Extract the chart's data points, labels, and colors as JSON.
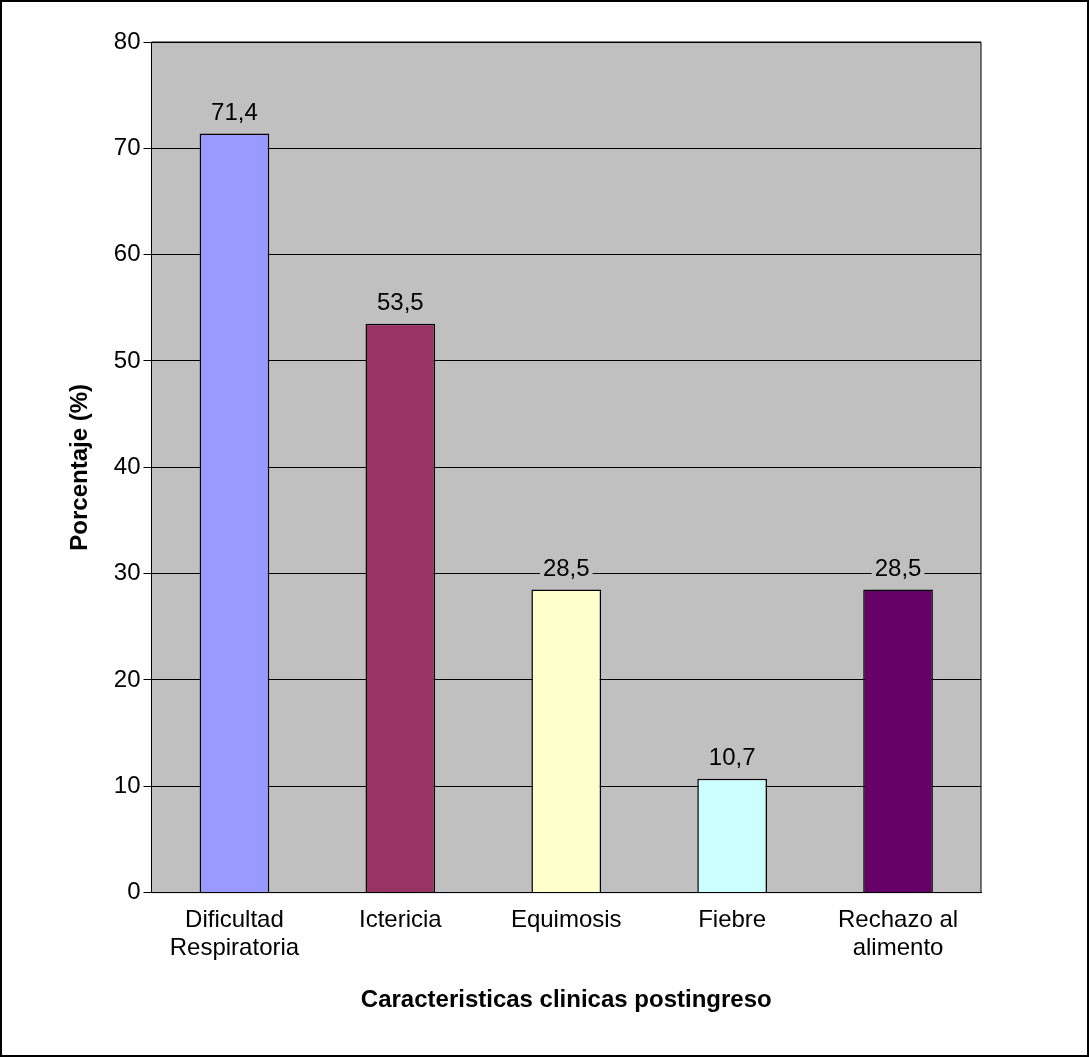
{
  "chart_data": {
    "type": "bar",
    "xlabel": "Caracteristicas clinicas postingreso",
    "ylabel": "Porcentaje (%)",
    "categories": [
      "Dificultad Respiratoria",
      "Ictericia",
      "Equimosis",
      "Fiebre",
      "Rechazo al alimento"
    ],
    "values": [
      71.4,
      53.5,
      28.5,
      10.7,
      28.5
    ],
    "colors": [
      "#9999ff",
      "#993366",
      "#ffffcc",
      "#ccffff",
      "#660066"
    ],
    "ylim": [
      0,
      80
    ],
    "yticks": [
      0,
      10,
      20,
      30,
      40,
      50,
      60,
      70,
      80
    ],
    "value_labels": [
      "71,4",
      "53,5",
      "28,5",
      "10,7",
      "28,5"
    ],
    "grid": "y",
    "legend": false
  }
}
